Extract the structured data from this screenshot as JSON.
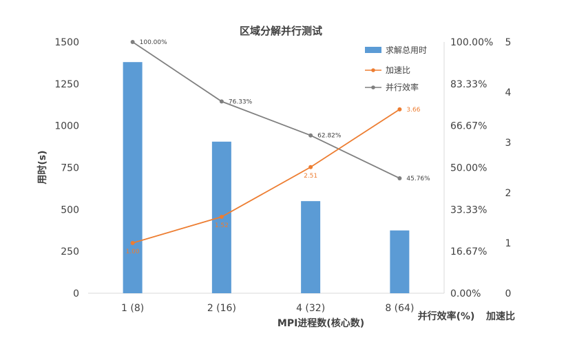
{
  "chart_data": {
    "type": "bar",
    "title": "区域分解并行测试",
    "xlabel": "MPI进程数(核心数)",
    "ylabel": "用时(s)",
    "y2label": "并行效率(%)",
    "y3label": "加速比",
    "categories": [
      "1 (8)",
      "2 (16)",
      "4 (32)",
      "8 (64)"
    ],
    "ylim": [
      0,
      1500
    ],
    "yticks": [
      "0",
      "250",
      "500",
      "750",
      "1000",
      "1250",
      "1500"
    ],
    "y2lim": [
      0,
      100
    ],
    "y2ticks": [
      "0.00%",
      "16.67%",
      "33.33%",
      "50.00%",
      "66.67%",
      "83.33%",
      "100.00%"
    ],
    "y3lim": [
      0,
      5
    ],
    "y3ticks": [
      "0",
      "1",
      "2",
      "3",
      "4",
      "5"
    ],
    "series": [
      {
        "name": "求解总用时",
        "type": "bar",
        "axis": "left",
        "color": "#5B9BD5",
        "values": [
          1380,
          905,
          550,
          375
        ]
      },
      {
        "name": "加速比",
        "type": "line",
        "axis": "speedup",
        "color": "#ED7D31",
        "values": [
          1.0,
          1.52,
          2.51,
          3.66
        ],
        "labels": [
          "1.00",
          "1.52",
          "2.51",
          "3.66"
        ]
      },
      {
        "name": "并行效率",
        "type": "line",
        "axis": "right",
        "color": "#7F7F7F",
        "values": [
          100.0,
          76.33,
          62.82,
          45.76
        ],
        "labels": [
          "100.00%",
          "76.33%",
          "62.82%",
          "45.76%"
        ]
      }
    ],
    "legend_position": "top-right",
    "grid": false
  }
}
